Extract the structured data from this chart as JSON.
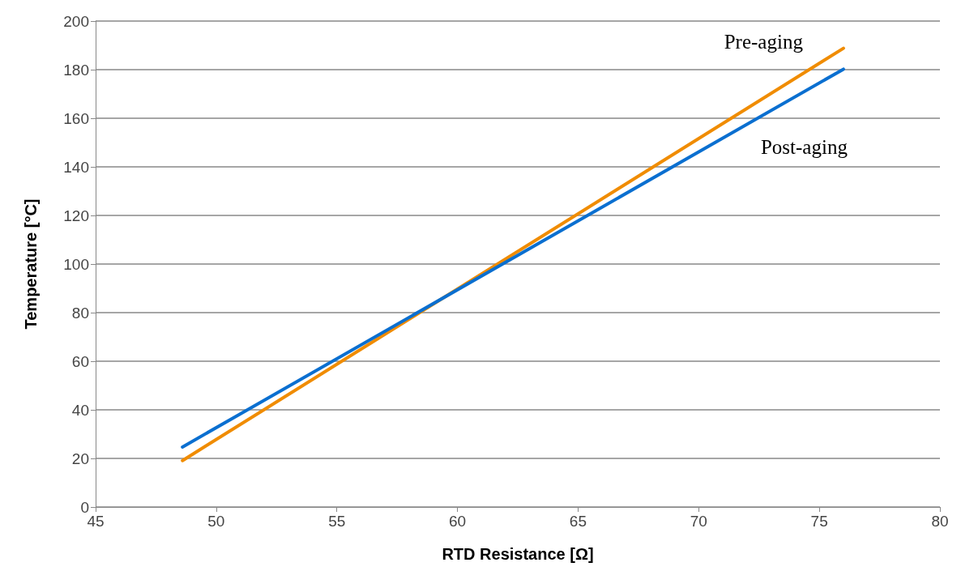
{
  "chart_data": {
    "type": "line",
    "xlabel": "RTD Resistance [Ω]",
    "ylabel": "Temperature [°C]",
    "xlim": [
      45,
      80
    ],
    "xticks": [
      45,
      50,
      55,
      60,
      65,
      70,
      75,
      80
    ],
    "ylim": [
      0,
      200
    ],
    "yticks": [
      0,
      20,
      40,
      60,
      80,
      100,
      120,
      140,
      160,
      180,
      200
    ],
    "x": [
      48.6,
      76.0
    ],
    "grid": "y",
    "legend": false,
    "marker": "none",
    "line_style": "solid",
    "series": [
      {
        "name": "Pre-aging",
        "color": "#f08c00",
        "values": [
          19.1,
          188.8
        ]
      },
      {
        "name": "Post-aging",
        "color": "#0a6fd0",
        "values": [
          24.7,
          180.2
        ]
      }
    ]
  }
}
